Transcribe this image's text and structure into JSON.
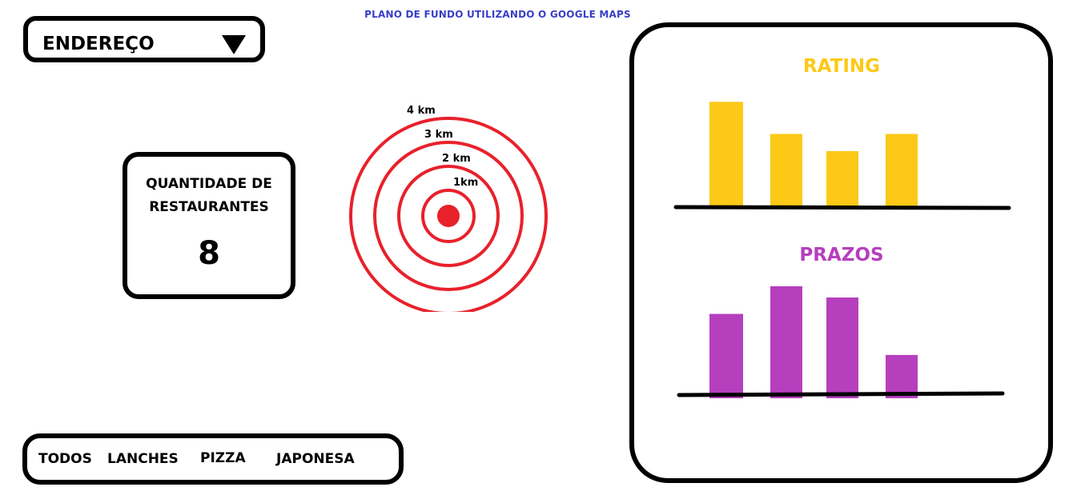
{
  "background_note": "PLANO DE FUNDO UTILIZANDO O GOOGLE MAPS",
  "address_select": {
    "label": "ENDEREÇO",
    "icon": "triangle-down-icon"
  },
  "restaurant_count": {
    "title_line1": "QUANTIDADE DE",
    "title_line2": "RESTAURANTES",
    "value": "8"
  },
  "radius_map": {
    "rings": [
      {
        "label": "4 km",
        "km": 4
      },
      {
        "label": "3 km",
        "km": 3
      },
      {
        "label": "2 km",
        "km": 2
      },
      {
        "label": "1km",
        "km": 1
      }
    ],
    "ring_color": "#e8212b",
    "center_color": "#e8212b"
  },
  "filters": {
    "items": [
      "TODOS",
      "LANCHES",
      "PIZZA",
      "JAPONESA"
    ]
  },
  "chart_data": [
    {
      "type": "bar",
      "title": "RATING",
      "color": "#fcc917",
      "title_color": "#fcc917",
      "values": [
        140,
        97,
        74,
        97
      ],
      "ylim": [
        0,
        150
      ]
    },
    {
      "type": "bar",
      "title": "PRAZOS",
      "color": "#b63fbd",
      "title_color": "#b63fbd",
      "values": [
        113,
        150,
        135,
        58
      ],
      "ylim": [
        0,
        150
      ]
    }
  ]
}
